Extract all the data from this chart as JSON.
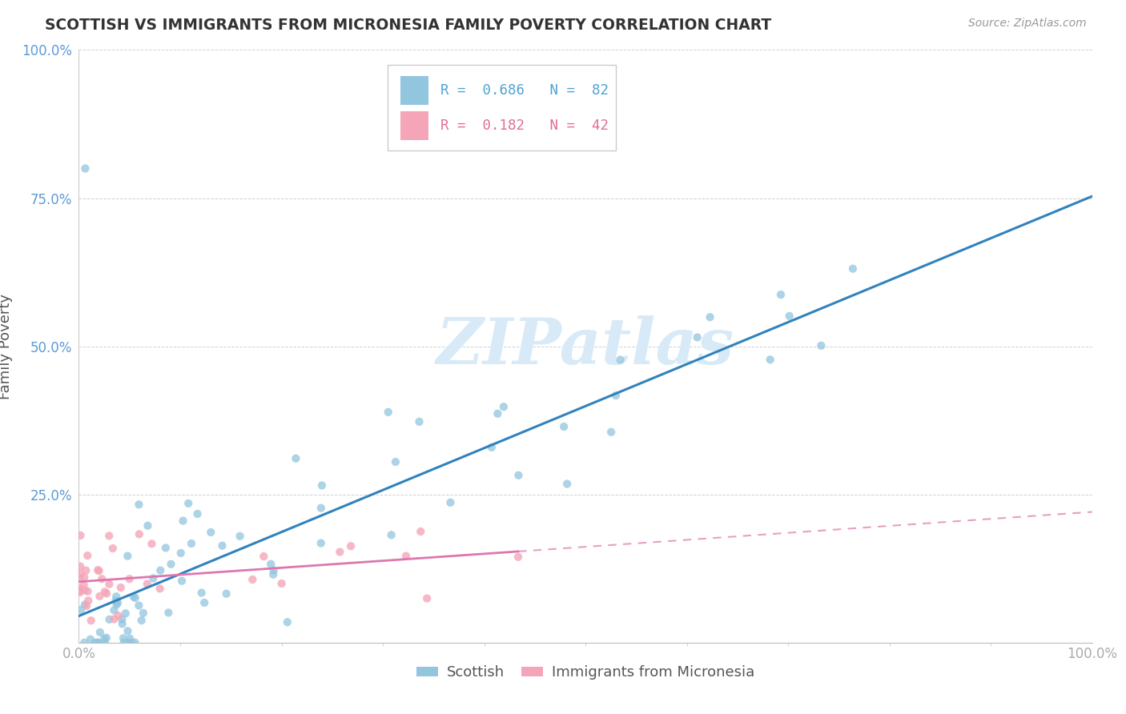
{
  "title": "SCOTTISH VS IMMIGRANTS FROM MICRONESIA FAMILY POVERTY CORRELATION CHART",
  "source": "Source: ZipAtlas.com",
  "ylabel": "Family Poverty",
  "legend_blue_r": "0.686",
  "legend_blue_n": "82",
  "legend_pink_r": "0.182",
  "legend_pink_n": "42",
  "legend_label_blue": "Scottish",
  "legend_label_pink": "Immigrants from Micronesia",
  "blue_color": "#92c5de",
  "pink_color": "#f4a6b8",
  "trend_blue_color": "#3182bd",
  "trend_pink_color": "#de77ae",
  "watermark": "ZIPatlas",
  "ytick_labels": [
    "",
    "25.0%",
    "50.0%",
    "75.0%",
    "100.0%"
  ],
  "ytick_vals": [
    0,
    25,
    50,
    75,
    100
  ],
  "xtick_labels": [
    "0.0%",
    "100.0%"
  ],
  "xtick_vals": [
    0,
    100
  ]
}
